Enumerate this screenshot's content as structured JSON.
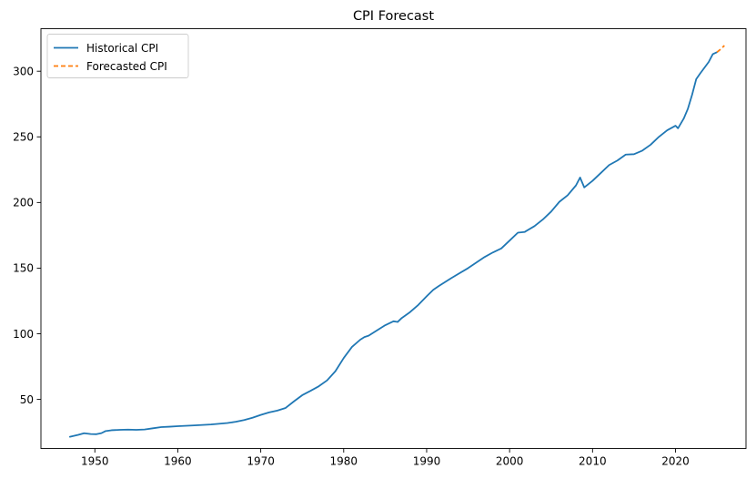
{
  "chart_data": {
    "type": "line",
    "title": "CPI Forecast",
    "xlabel": "",
    "ylabel": "",
    "xlim": [
      1943.5,
      2028.5
    ],
    "ylim": [
      12.6,
      332.4
    ],
    "x_ticks": [
      1950,
      1960,
      1970,
      1980,
      1990,
      2000,
      2010,
      2020
    ],
    "y_ticks": [
      50,
      100,
      150,
      200,
      250,
      300
    ],
    "grid": false,
    "legend_position": "top-left",
    "series": [
      {
        "name": "Historical CPI",
        "color": "#1f77b4",
        "style": "solid",
        "points": [
          [
            1947.0,
            21.5
          ],
          [
            1948.0,
            23.0
          ],
          [
            1948.7,
            24.2
          ],
          [
            1949.5,
            23.6
          ],
          [
            1950.2,
            23.5
          ],
          [
            1950.8,
            24.3
          ],
          [
            1951.3,
            25.9
          ],
          [
            1952.0,
            26.5
          ],
          [
            1953.0,
            26.8
          ],
          [
            1954.0,
            27.0
          ],
          [
            1955.0,
            26.8
          ],
          [
            1956.0,
            27.1
          ],
          [
            1957.0,
            28.0
          ],
          [
            1958.0,
            28.9
          ],
          [
            1959.0,
            29.2
          ],
          [
            1960.0,
            29.6
          ],
          [
            1962.0,
            30.2
          ],
          [
            1964.0,
            30.9
          ],
          [
            1966.0,
            32.0
          ],
          [
            1967.0,
            33.0
          ],
          [
            1968.0,
            34.3
          ],
          [
            1969.0,
            36.0
          ],
          [
            1970.0,
            38.2
          ],
          [
            1971.0,
            40.1
          ],
          [
            1972.0,
            41.5
          ],
          [
            1973.0,
            43.5
          ],
          [
            1974.0,
            48.5
          ],
          [
            1975.0,
            53.2
          ],
          [
            1976.0,
            56.5
          ],
          [
            1977.0,
            60.0
          ],
          [
            1978.0,
            64.5
          ],
          [
            1979.0,
            71.5
          ],
          [
            1980.0,
            81.5
          ],
          [
            1981.0,
            90.0
          ],
          [
            1982.0,
            95.5
          ],
          [
            1982.5,
            97.5
          ],
          [
            1983.0,
            98.5
          ],
          [
            1984.0,
            102.5
          ],
          [
            1985.0,
            106.5
          ],
          [
            1986.0,
            109.5
          ],
          [
            1986.5,
            109.0
          ],
          [
            1987.0,
            112.0
          ],
          [
            1988.0,
            116.5
          ],
          [
            1989.0,
            122.0
          ],
          [
            1990.0,
            128.5
          ],
          [
            1990.8,
            133.5
          ],
          [
            1991.5,
            136.5
          ],
          [
            1993.0,
            142.5
          ],
          [
            1995.0,
            150.0
          ],
          [
            1997.0,
            158.5
          ],
          [
            1998.0,
            162.0
          ],
          [
            1999.0,
            165.0
          ],
          [
            2000.0,
            171.0
          ],
          [
            2001.0,
            177.0
          ],
          [
            2001.8,
            177.5
          ],
          [
            2003.0,
            182.0
          ],
          [
            2004.0,
            187.0
          ],
          [
            2005.0,
            193.0
          ],
          [
            2006.0,
            200.5
          ],
          [
            2007.0,
            205.5
          ],
          [
            2008.0,
            213.0
          ],
          [
            2008.5,
            219.0
          ],
          [
            2009.0,
            211.5
          ],
          [
            2010.0,
            216.5
          ],
          [
            2011.0,
            222.5
          ],
          [
            2012.0,
            228.5
          ],
          [
            2013.0,
            232.0
          ],
          [
            2014.0,
            236.5
          ],
          [
            2015.0,
            236.8
          ],
          [
            2016.0,
            239.5
          ],
          [
            2017.0,
            244.0
          ],
          [
            2018.0,
            250.0
          ],
          [
            2019.0,
            255.0
          ],
          [
            2020.0,
            258.5
          ],
          [
            2020.3,
            256.5
          ],
          [
            2021.0,
            264.0
          ],
          [
            2021.5,
            271.5
          ],
          [
            2022.0,
            282.0
          ],
          [
            2022.5,
            294.0
          ],
          [
            2023.0,
            298.5
          ],
          [
            2024.0,
            307.0
          ],
          [
            2024.5,
            313.0
          ],
          [
            2025.0,
            314.5
          ]
        ]
      },
      {
        "name": "Forecasted CPI",
        "color": "#ff7f0e",
        "style": "dashed",
        "points": [
          [
            2025.0,
            314.5
          ],
          [
            2025.3,
            316.0
          ],
          [
            2025.6,
            317.8
          ],
          [
            2025.9,
            319.5
          ]
        ]
      }
    ]
  }
}
